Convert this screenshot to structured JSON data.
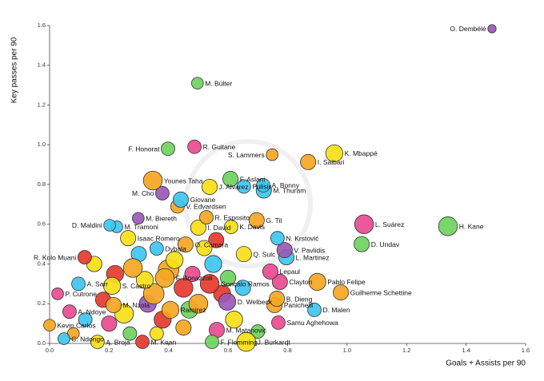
{
  "chart_data": {
    "type": "scatter",
    "x_label": "Goals + Assists per 90",
    "y_label": "Key passes per 90",
    "xlim": [
      0,
      1.6
    ],
    "ylim": [
      0,
      1.6
    ],
    "xticks": [
      {
        "value": 0,
        "label": "0.0"
      },
      0.2,
      0.4,
      0.6,
      0.8,
      {
        "value": 1,
        "label": "1.0"
      },
      1.2,
      1.4,
      1.6
    ],
    "yticks": [
      {
        "value": 0,
        "label": "0.0"
      },
      0.2,
      0.4,
      0.6,
      0.8,
      {
        "value": 1,
        "label": "1.0"
      },
      1.2,
      1.4,
      1.6
    ],
    "labels": [
      "O. Dembélé",
      "M. Bülter",
      "F. Honorat",
      "R. Guitane",
      "S. Lammers",
      "K. Mbappé",
      "I. Saibari",
      "F. Aslani",
      "Younes Taha",
      "J. Alvarez",
      "Pulisic",
      "A. Bonny",
      "M. Thuram",
      "M. Cho",
      "Giovane",
      "V. Edvardsen",
      "M. Biereth",
      "R. Esposito",
      "G. Til",
      "L. Suárez",
      "H. Kane",
      "D. Maldini",
      "M. Tramoni",
      "I. David",
      "K. Davis",
      "D. Undav",
      "Isaac Romero",
      "N. Krstović",
      "R. Kolo Muani",
      "V. Pavlidis",
      "L. Martinez",
      "Dybala",
      "O. Camara",
      "Q. Sulc",
      "Lepaul",
      "Clayton",
      "Pablo Felipe",
      "Guilherme Schettine",
      "Gonçalo Ramos",
      "D. Welbeck",
      "B. Dieng",
      "D. Malen",
      "Samu Aghehowa",
      "A. Sarr",
      "P. Cutrone",
      "A. Ndoye",
      "Kevin Carlos",
      "C. Ndongo",
      "A. Broja",
      "M. Kean",
      "F. Flemming",
      "J. Burkardt",
      "S. Castro",
      "M. Nzola",
      "Ramirez",
      "F. Bonazzoli",
      "M. Matanović",
      "Panichelli",
      null,
      null,
      null,
      null,
      null,
      null,
      null,
      null,
      null,
      null,
      null,
      null,
      null,
      null,
      null,
      null,
      null,
      null,
      null,
      null,
      null,
      null,
      null,
      null,
      null,
      null,
      null,
      null,
      null,
      null
    ],
    "x": [
      1.487,
      0.497,
      0.398,
      0.487,
      0.748,
      0.957,
      0.869,
      0.608,
      0.347,
      0.538,
      0.653,
      0.718,
      0.72,
      0.379,
      0.441,
      0.43,
      0.298,
      0.527,
      0.696,
      1.057,
      1.339,
      0.202,
      0.226,
      0.5,
      0.61,
      1.049,
      0.264,
      0.766,
      0.118,
      0.79,
      0.796,
      0.36,
      0.457,
      0.653,
      0.742,
      0.774,
      0.9,
      0.979,
      0.538,
      0.597,
      0.764,
      0.89,
      0.769,
      0.097,
      0.027,
      0.067,
      0.0,
      0.048,
      0.161,
      0.312,
      0.546,
      0.661,
      0.21,
      0.215,
      0.406,
      0.387,
      0.562,
      0.756,
      0.15,
      0.22,
      0.28,
      0.32,
      0.35,
      0.45,
      0.48,
      0.5,
      0.55,
      0.6,
      0.42,
      0.3,
      0.18,
      0.25,
      0.38,
      0.45,
      0.12,
      0.27,
      0.33,
      0.4,
      0.52,
      0.58,
      0.65,
      0.62,
      0.7,
      0.08,
      0.2,
      0.36,
      0.47,
      0.56
    ],
    "values": [
      1.584,
      1.31,
      0.98,
      0.99,
      0.95,
      0.957,
      0.913,
      0.828,
      0.82,
      0.788,
      0.79,
      0.796,
      0.77,
      0.756,
      0.724,
      0.69,
      0.63,
      0.635,
      0.62,
      0.6,
      0.59,
      0.595,
      0.587,
      0.583,
      0.587,
      0.5,
      0.53,
      0.53,
      0.434,
      0.47,
      0.434,
      0.478,
      0.498,
      0.45,
      0.362,
      0.31,
      0.31,
      0.257,
      0.3,
      0.21,
      0.225,
      0.169,
      0.105,
      0.3,
      0.25,
      0.16,
      0.092,
      0.024,
      0.008,
      0.008,
      0.008,
      0.008,
      0.29,
      0.193,
      0.169,
      0.33,
      0.068,
      0.193,
      0.4,
      0.35,
      0.38,
      0.32,
      0.25,
      0.28,
      0.35,
      0.2,
      0.4,
      0.33,
      0.42,
      0.45,
      0.22,
      0.15,
      0.12,
      0.08,
      0.12,
      0.05,
      0.2,
      0.37,
      0.48,
      0.25,
      0.28,
      0.12,
      0.06,
      0.05,
      0.1,
      0.05,
      0.17,
      0.52
    ],
    "sizes": [
      2,
      4,
      5,
      5,
      4,
      7,
      6,
      6,
      8,
      6,
      5,
      5,
      6,
      5,
      6,
      5,
      4,
      5,
      6,
      8,
      8,
      4,
      4,
      6,
      5,
      6,
      6,
      5,
      5,
      6,
      6,
      5,
      6,
      6,
      6,
      6,
      7,
      6,
      8,
      7,
      6,
      5,
      5,
      5,
      4,
      5,
      4,
      4,
      5,
      5,
      5,
      8,
      7,
      6,
      7,
      8,
      6,
      6,
      6,
      7,
      8,
      7,
      9,
      8,
      6,
      8,
      7,
      6,
      7,
      6,
      6,
      8,
      7,
      6,
      5,
      5,
      7,
      9,
      6,
      7,
      6,
      7,
      5,
      4,
      6,
      5,
      7,
      6
    ],
    "colors": [
      "#9b59b6",
      "#6fd35e",
      "#6fd35e",
      "#e94b8f",
      "#f5a623",
      "#f7e017",
      "#f5a623",
      "#6fd35e",
      "#f5a623",
      "#f7e017",
      "#3ec6f0",
      "#3ec6f0",
      "#3ec6f0",
      "#9b59b6",
      "#3ec6f0",
      "#f5a623",
      "#9b59b6",
      "#f5a623",
      "#f5a623",
      "#e94b8f",
      "#6fd35e",
      "#3ec6f0",
      "#3ec6f0",
      "#f7e017",
      "#f7e017",
      "#6fd35e",
      "#f7e017",
      "#3ec6f0",
      "#e63a2e",
      "#9b59b6",
      "#3ec6f0",
      "#3ec6f0",
      "#f5a623",
      "#f7e017",
      "#e94b8f",
      "#e94b8f",
      "#f5a623",
      "#f5a623",
      "#e63a2e",
      "#9b59b6",
      "#f5a623",
      "#3ec6f0",
      "#e94b8f",
      "#3ec6f0",
      "#e94b8f",
      "#e94b8f",
      "#f5a623",
      "#3ec6f0",
      "#f7e017",
      "#e63a2e",
      "#6fd35e",
      "#f7e017",
      "#f7e017",
      "#f5a623",
      "#f5a623",
      "#f5a623",
      "#e94b8f",
      "#f5a623",
      "#f7e017",
      "#e63a2e",
      "#f5a623",
      "#f7e017",
      "#f5a623",
      "#e63a2e",
      "#e94b8f",
      "#f5a623",
      "#3ec6f0",
      "#6fd35e",
      "#f7e017",
      "#3ec6f0",
      "#e63a2e",
      "#f7e017",
      "#e63a2e",
      "#f5a623",
      "#3ec6f0",
      "#6fd35e",
      "#9b59b6",
      "#f5a623",
      "#f7e017",
      "#e63a2e",
      "#3ec6f0",
      "#f7e017",
      "#6fd35e",
      "#f5a623",
      "#e94b8f",
      "#f7e017",
      "#6fd35e",
      "#e63a2e"
    ]
  }
}
